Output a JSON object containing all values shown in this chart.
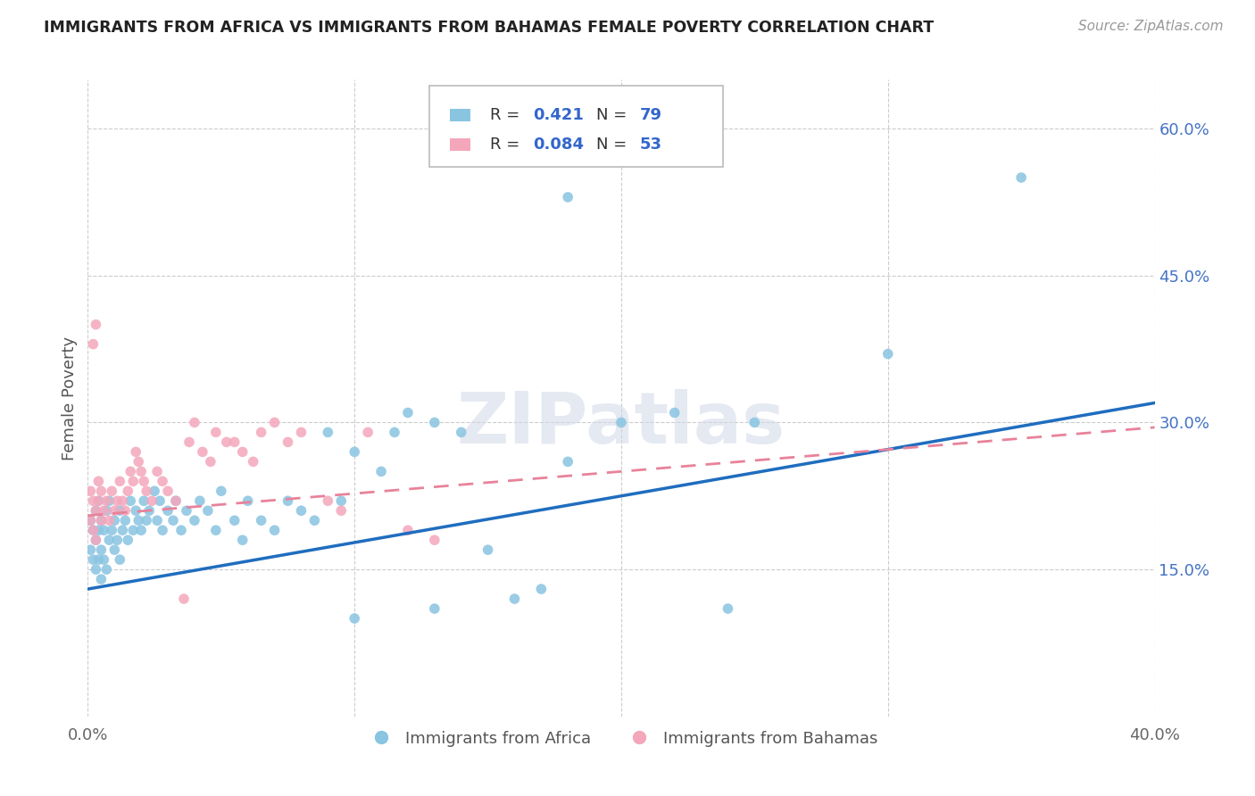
{
  "title": "IMMIGRANTS FROM AFRICA VS IMMIGRANTS FROM BAHAMAS FEMALE POVERTY CORRELATION CHART",
  "source": "Source: ZipAtlas.com",
  "ylabel": "Female Poverty",
  "xlim": [
    0.0,
    0.4
  ],
  "ylim": [
    0.0,
    0.65
  ],
  "y_ticks_right": [
    0.15,
    0.3,
    0.45,
    0.6
  ],
  "y_tick_labels_right": [
    "15.0%",
    "30.0%",
    "45.0%",
    "60.0%"
  ],
  "R_africa": 0.421,
  "N_africa": 79,
  "R_bahamas": 0.084,
  "N_bahamas": 53,
  "color_africa": "#89c4e1",
  "color_bahamas": "#f4a7bb",
  "line_color_africa": "#1f6dbf",
  "line_color_bahamas": "#e8829a",
  "watermark": "ZIPatlas",
  "legend_label_africa": "Immigrants from Africa",
  "legend_label_bahamas": "Immigrants from Bahamas",
  "africa_x": [
    0.001,
    0.001,
    0.002,
    0.002,
    0.003,
    0.003,
    0.003,
    0.004,
    0.004,
    0.004,
    0.005,
    0.005,
    0.005,
    0.006,
    0.006,
    0.007,
    0.007,
    0.008,
    0.008,
    0.009,
    0.01,
    0.01,
    0.011,
    0.012,
    0.012,
    0.013,
    0.014,
    0.015,
    0.016,
    0.017,
    0.018,
    0.019,
    0.02,
    0.021,
    0.022,
    0.023,
    0.025,
    0.026,
    0.027,
    0.028,
    0.03,
    0.032,
    0.033,
    0.035,
    0.037,
    0.04,
    0.042,
    0.045,
    0.048,
    0.05,
    0.055,
    0.058,
    0.06,
    0.065,
    0.07,
    0.075,
    0.08,
    0.085,
    0.09,
    0.095,
    0.1,
    0.11,
    0.115,
    0.12,
    0.13,
    0.14,
    0.15,
    0.16,
    0.17,
    0.18,
    0.2,
    0.22,
    0.25,
    0.18,
    0.35,
    0.3,
    0.1,
    0.13,
    0.24
  ],
  "africa_y": [
    0.17,
    0.2,
    0.16,
    0.19,
    0.15,
    0.18,
    0.21,
    0.16,
    0.19,
    0.22,
    0.14,
    0.17,
    0.2,
    0.16,
    0.19,
    0.15,
    0.21,
    0.18,
    0.22,
    0.19,
    0.17,
    0.2,
    0.18,
    0.16,
    0.21,
    0.19,
    0.2,
    0.18,
    0.22,
    0.19,
    0.21,
    0.2,
    0.19,
    0.22,
    0.2,
    0.21,
    0.23,
    0.2,
    0.22,
    0.19,
    0.21,
    0.2,
    0.22,
    0.19,
    0.21,
    0.2,
    0.22,
    0.21,
    0.19,
    0.23,
    0.2,
    0.18,
    0.22,
    0.2,
    0.19,
    0.22,
    0.21,
    0.2,
    0.29,
    0.22,
    0.27,
    0.25,
    0.29,
    0.31,
    0.3,
    0.29,
    0.17,
    0.12,
    0.13,
    0.26,
    0.3,
    0.31,
    0.3,
    0.53,
    0.55,
    0.37,
    0.1,
    0.11,
    0.11
  ],
  "bahamas_x": [
    0.001,
    0.001,
    0.002,
    0.002,
    0.003,
    0.003,
    0.004,
    0.004,
    0.005,
    0.005,
    0.006,
    0.007,
    0.008,
    0.009,
    0.01,
    0.011,
    0.012,
    0.013,
    0.014,
    0.015,
    0.016,
    0.017,
    0.018,
    0.019,
    0.02,
    0.021,
    0.022,
    0.024,
    0.026,
    0.028,
    0.03,
    0.033,
    0.036,
    0.038,
    0.04,
    0.043,
    0.046,
    0.048,
    0.052,
    0.055,
    0.058,
    0.062,
    0.065,
    0.07,
    0.075,
    0.08,
    0.09,
    0.095,
    0.105,
    0.12,
    0.13,
    0.003,
    0.002
  ],
  "bahamas_y": [
    0.2,
    0.23,
    0.19,
    0.22,
    0.21,
    0.18,
    0.22,
    0.24,
    0.2,
    0.23,
    0.21,
    0.22,
    0.2,
    0.23,
    0.21,
    0.22,
    0.24,
    0.22,
    0.21,
    0.23,
    0.25,
    0.24,
    0.27,
    0.26,
    0.25,
    0.24,
    0.23,
    0.22,
    0.25,
    0.24,
    0.23,
    0.22,
    0.12,
    0.28,
    0.3,
    0.27,
    0.26,
    0.29,
    0.28,
    0.28,
    0.27,
    0.26,
    0.29,
    0.3,
    0.28,
    0.29,
    0.22,
    0.21,
    0.29,
    0.19,
    0.18,
    0.4,
    0.38
  ]
}
